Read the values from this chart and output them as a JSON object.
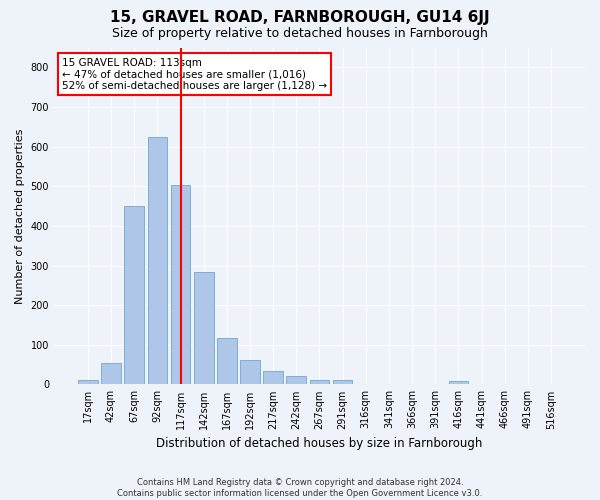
{
  "title": "15, GRAVEL ROAD, FARNBOROUGH, GU14 6JJ",
  "subtitle": "Size of property relative to detached houses in Farnborough",
  "xlabel": "Distribution of detached houses by size in Farnborough",
  "ylabel": "Number of detached properties",
  "footer_line1": "Contains HM Land Registry data © Crown copyright and database right 2024.",
  "footer_line2": "Contains public sector information licensed under the Open Government Licence v3.0.",
  "bar_labels": [
    "17sqm",
    "42sqm",
    "67sqm",
    "92sqm",
    "117sqm",
    "142sqm",
    "167sqm",
    "192sqm",
    "217sqm",
    "242sqm",
    "267sqm",
    "291sqm",
    "316sqm",
    "341sqm",
    "366sqm",
    "391sqm",
    "416sqm",
    "441sqm",
    "466sqm",
    "491sqm",
    "516sqm"
  ],
  "bar_values": [
    12,
    55,
    450,
    623,
    503,
    283,
    118,
    62,
    35,
    22,
    10,
    10,
    0,
    0,
    0,
    0,
    8,
    0,
    0,
    0,
    0
  ],
  "bar_color": "#aec6e8",
  "bar_edgecolor": "#7aafd4",
  "vline_x_index": 4,
  "vline_color": "red",
  "annotation_text": "15 GRAVEL ROAD: 113sqm\n← 47% of detached houses are smaller (1,016)\n52% of semi-detached houses are larger (1,128) →",
  "annotation_box_color": "white",
  "annotation_box_edgecolor": "red",
  "ylim": [
    0,
    850
  ],
  "yticks": [
    0,
    100,
    200,
    300,
    400,
    500,
    600,
    700,
    800
  ],
  "bg_color": "#eef2f9",
  "plot_bg_color": "#eef2f9",
  "grid_color": "white",
  "title_fontsize": 11,
  "subtitle_fontsize": 9,
  "ylabel_fontsize": 8,
  "xlabel_fontsize": 8.5,
  "tick_fontsize": 7,
  "footer_fontsize": 6,
  "annotation_fontsize": 7.5
}
